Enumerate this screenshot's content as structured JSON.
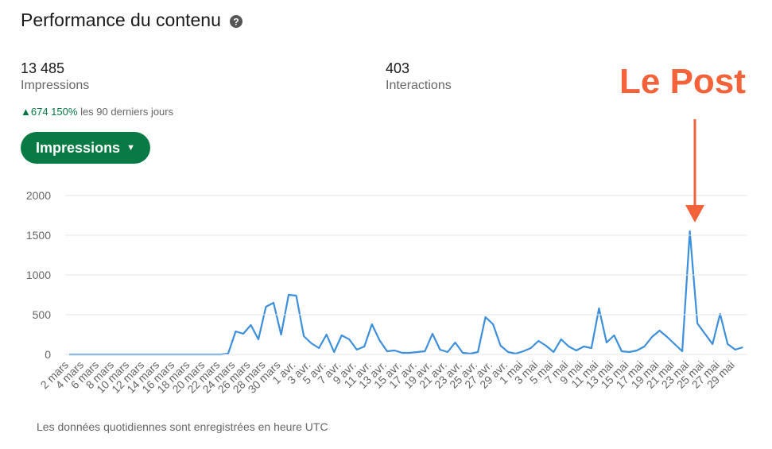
{
  "header": {
    "title": "Performance du contenu"
  },
  "stats": [
    {
      "value": "13 485",
      "label": "Impressions"
    },
    {
      "value": "403",
      "label": "Interactions"
    }
  ],
  "trend": {
    "change": "674 150%",
    "period": "les 90 derniers jours"
  },
  "button": "Impressions",
  "footer": "Les données quotidiennes sont enregistrées en heure UTC",
  "chart_data": {
    "type": "line",
    "color": "#3d8fdc",
    "grid": true,
    "annotation": "Le Post",
    "ylim": [
      0,
      2000
    ],
    "yticks": [
      0,
      500,
      1000,
      1500,
      2000
    ],
    "categories": [
      "2 mars",
      null,
      "4 mars",
      null,
      "6 mars",
      null,
      "8 mars",
      null,
      "10 mars",
      null,
      "12 mars",
      null,
      "14 mars",
      null,
      "16 mars",
      null,
      "18 mars",
      null,
      "20 mars",
      null,
      "22 mars",
      null,
      "24 mars",
      null,
      "26 mars",
      null,
      "28 mars",
      null,
      "30 mars",
      null,
      "1 avr.",
      null,
      "3 avr.",
      null,
      "5 avr.",
      null,
      "7 avr.",
      null,
      "9 avr.",
      null,
      "11 avr.",
      null,
      "13 avr.",
      null,
      "15 avr.",
      null,
      "17 avr.",
      null,
      "19 avr.",
      null,
      "21 avr.",
      null,
      "23 avr.",
      null,
      "25 avr.",
      null,
      "27 avr.",
      null,
      "29 avr.",
      null,
      "1 mai",
      null,
      "3 mai",
      null,
      "5 mai",
      null,
      "7 mai",
      null,
      "9 mai",
      null,
      "11 mai",
      null,
      "13 mai",
      null,
      "15 mai",
      null,
      "17 mai",
      null,
      "19 mai",
      null,
      "21 mai",
      null,
      "23 mai",
      null,
      "25 mai",
      null,
      "27 mai",
      null,
      "29 mai",
      null
    ],
    "values": [
      0,
      0,
      0,
      0,
      0,
      0,
      0,
      0,
      0,
      0,
      0,
      0,
      0,
      0,
      0,
      0,
      0,
      0,
      0,
      0,
      0,
      10,
      290,
      260,
      370,
      190,
      600,
      650,
      250,
      750,
      740,
      230,
      140,
      80,
      250,
      30,
      240,
      190,
      60,
      100,
      380,
      180,
      40,
      50,
      20,
      20,
      30,
      40,
      260,
      60,
      30,
      150,
      20,
      10,
      30,
      470,
      380,
      110,
      30,
      10,
      40,
      80,
      170,
      110,
      30,
      190,
      100,
      50,
      100,
      80,
      580,
      150,
      240,
      40,
      30,
      50,
      100,
      220,
      300,
      220,
      130,
      40,
      1550,
      390,
      260,
      130,
      510,
      130,
      60,
      90
    ]
  }
}
